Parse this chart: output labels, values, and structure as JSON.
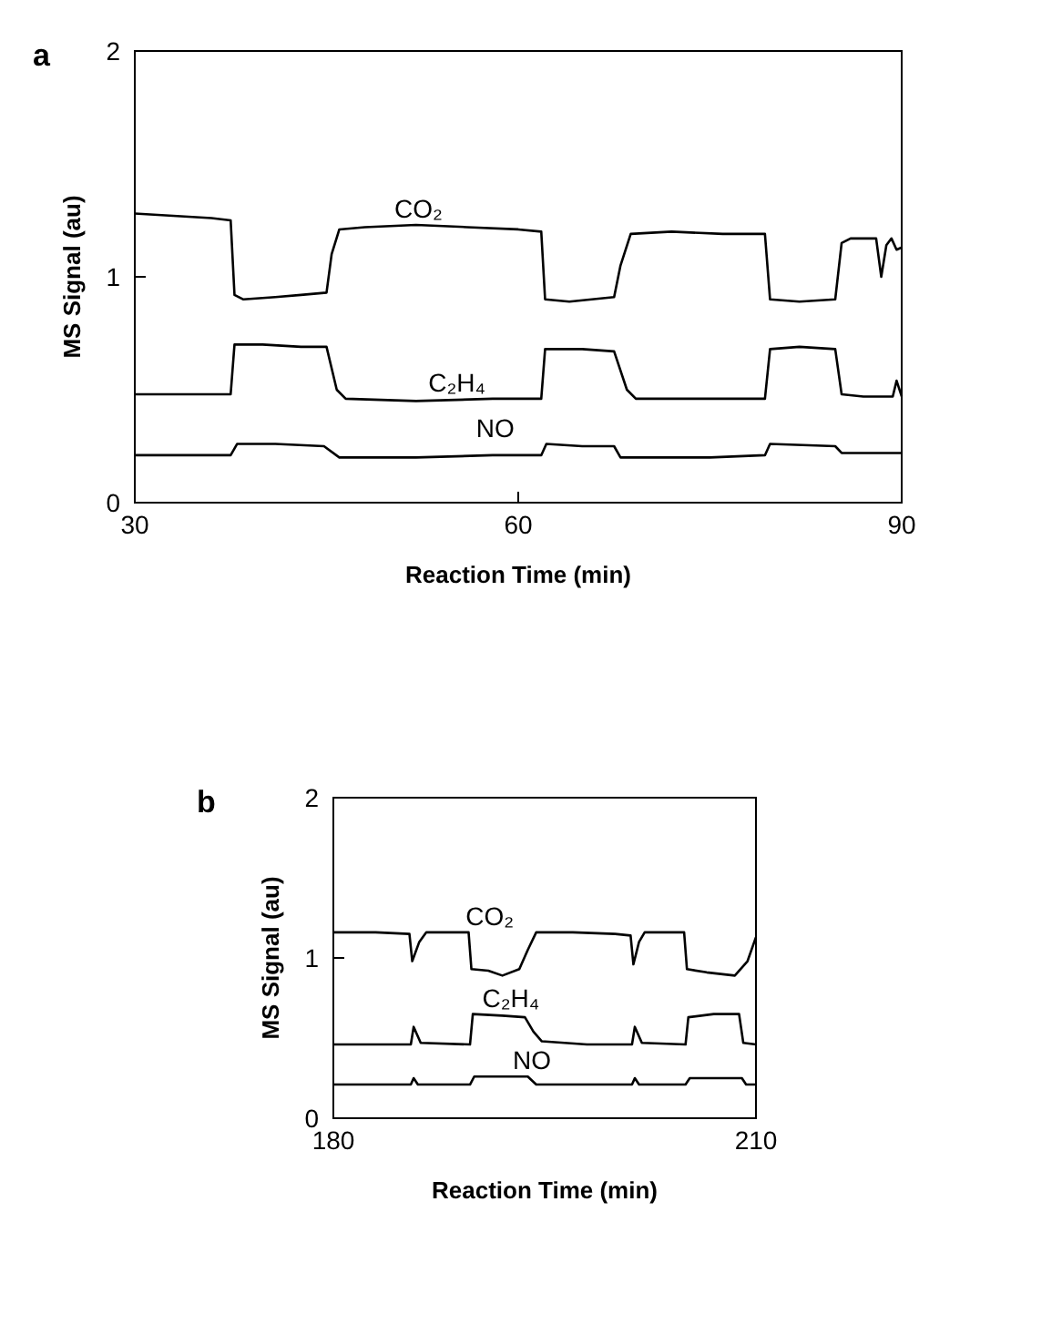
{
  "chart_data": [
    {
      "type": "line",
      "title": "a",
      "xlabel": "Reaction Time (min)",
      "ylabel": "MS Signal (au)",
      "xlim": [
        30,
        90
      ],
      "xticks": [
        30,
        60,
        90
      ],
      "ylim": [
        0,
        2
      ],
      "yticks": [
        0,
        1,
        2
      ],
      "series": [
        {
          "name": "CO₂",
          "color": "#000000",
          "x": [
            30,
            33,
            36,
            37.5,
            37.8,
            38.5,
            41,
            43,
            45,
            45.4,
            46,
            48,
            52,
            56,
            60,
            61.8,
            62.1,
            64,
            67.5,
            68,
            68.8,
            72,
            76,
            79.3,
            79.7,
            82,
            84.8,
            85.3,
            86,
            88,
            88.4,
            88.8,
            89.2,
            89.6,
            90
          ],
          "values": [
            1.28,
            1.27,
            1.26,
            1.25,
            0.92,
            0.9,
            0.91,
            0.92,
            0.93,
            1.1,
            1.21,
            1.22,
            1.23,
            1.22,
            1.21,
            1.2,
            0.9,
            0.89,
            0.91,
            1.05,
            1.19,
            1.2,
            1.19,
            1.19,
            0.9,
            0.89,
            0.9,
            1.15,
            1.17,
            1.17,
            1.0,
            1.14,
            1.17,
            1.12,
            1.13
          ]
        },
        {
          "name": "C₂H₄",
          "color": "#000000",
          "x": [
            30,
            37.5,
            37.8,
            40,
            43,
            45,
            45.8,
            46.5,
            52,
            58,
            61.8,
            62.1,
            65,
            67.5,
            68.5,
            69.2,
            75,
            79.3,
            79.7,
            82,
            84.8,
            85.3,
            87,
            89.3,
            89.6,
            90
          ],
          "values": [
            0.48,
            0.48,
            0.7,
            0.7,
            0.69,
            0.69,
            0.5,
            0.46,
            0.45,
            0.46,
            0.46,
            0.68,
            0.68,
            0.67,
            0.5,
            0.46,
            0.46,
            0.46,
            0.68,
            0.69,
            0.68,
            0.48,
            0.47,
            0.47,
            0.54,
            0.47
          ]
        },
        {
          "name": "NO",
          "color": "#000000",
          "x": [
            30,
            37.5,
            38,
            41,
            44.8,
            46,
            52,
            58,
            61.8,
            62.2,
            65,
            67.5,
            68,
            75,
            79.3,
            79.7,
            84.8,
            85.3,
            90
          ],
          "values": [
            0.21,
            0.21,
            0.26,
            0.26,
            0.25,
            0.2,
            0.2,
            0.21,
            0.21,
            0.26,
            0.25,
            0.25,
            0.2,
            0.2,
            0.21,
            0.26,
            0.25,
            0.22,
            0.22
          ]
        }
      ]
    },
    {
      "type": "line",
      "title": "b",
      "xlabel": "Reaction Time (min)",
      "ylabel": "MS Signal (au)",
      "xlim": [
        180,
        210
      ],
      "xticks": [
        180,
        210
      ],
      "ylim": [
        0,
        2
      ],
      "yticks": [
        0,
        1,
        2
      ],
      "series": [
        {
          "name": "CO₂",
          "color": "#000000",
          "x": [
            180,
            183,
            185.4,
            185.6,
            186.1,
            186.6,
            188,
            189.6,
            189.8,
            191,
            192,
            193.2,
            193.8,
            194.4,
            197,
            200,
            201.1,
            201.3,
            201.7,
            202.1,
            204.9,
            205.1,
            206.5,
            208.5,
            209.4,
            210
          ],
          "values": [
            1.16,
            1.16,
            1.15,
            0.98,
            1.1,
            1.16,
            1.16,
            1.16,
            0.93,
            0.92,
            0.89,
            0.93,
            1.05,
            1.16,
            1.16,
            1.15,
            1.14,
            0.96,
            1.1,
            1.16,
            1.16,
            0.93,
            0.91,
            0.89,
            0.98,
            1.13
          ]
        },
        {
          "name": "C₂H₄",
          "color": "#000000",
          "x": [
            180,
            183,
            185.5,
            185.7,
            186.2,
            189.7,
            189.9,
            192,
            193.6,
            194.2,
            194.8,
            198,
            201.2,
            201.4,
            201.9,
            205,
            205.2,
            207,
            208.8,
            209.1,
            210
          ],
          "values": [
            0.46,
            0.46,
            0.46,
            0.57,
            0.47,
            0.46,
            0.65,
            0.64,
            0.63,
            0.54,
            0.48,
            0.46,
            0.46,
            0.57,
            0.47,
            0.46,
            0.63,
            0.65,
            0.65,
            0.47,
            0.46
          ]
        },
        {
          "name": "NO",
          "color": "#000000",
          "x": [
            180,
            185.5,
            185.7,
            186,
            189.7,
            190,
            193.8,
            194.4,
            201.2,
            201.4,
            201.7,
            205,
            205.3,
            209,
            209.3,
            210
          ],
          "values": [
            0.21,
            0.21,
            0.25,
            0.21,
            0.21,
            0.26,
            0.26,
            0.21,
            0.21,
            0.25,
            0.21,
            0.21,
            0.25,
            0.25,
            0.21,
            0.21
          ]
        }
      ]
    }
  ]
}
